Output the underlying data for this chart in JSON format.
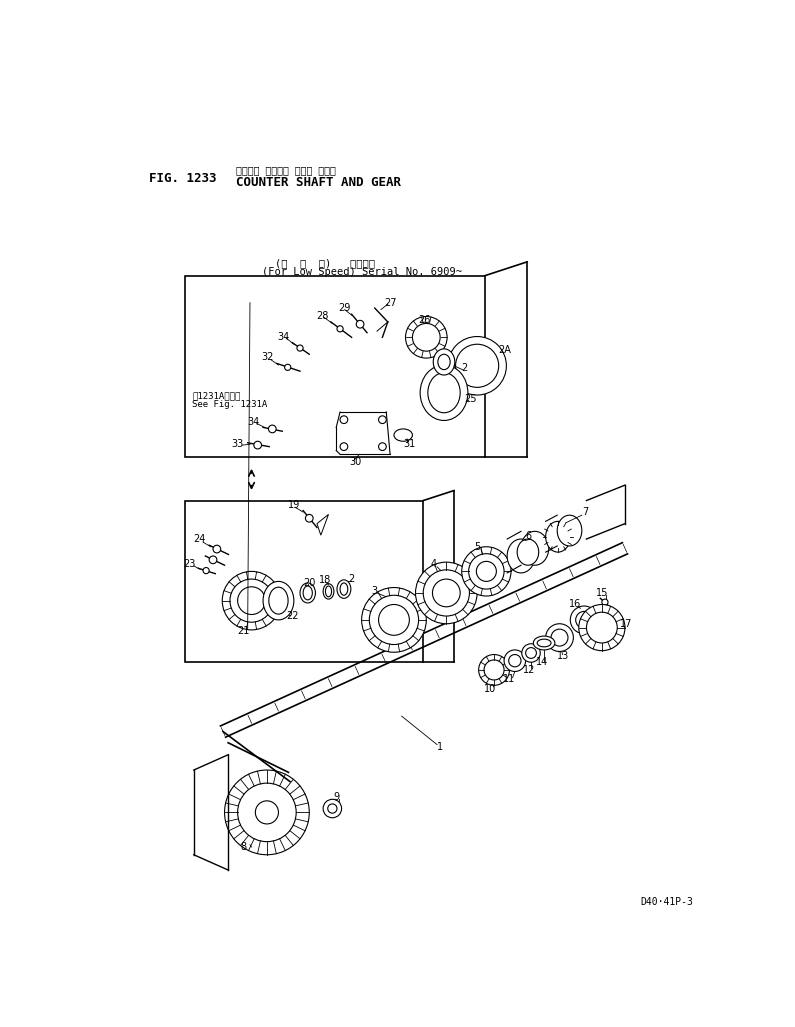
{
  "title_japanese": "カウンタ シャフト および ギヤー",
  "title_english": "COUNTER SHAFT AND GEAR",
  "fig_number": "FIG. 1233",
  "subtitle_japanese": "(低  速  用)   適用号機",
  "subtitle_english": "(For Low Speed) Serial No. 6909~",
  "see_fig_japanese": "第1231A図参照",
  "see_fig_english": "See Fig. 1231A",
  "doc_number": "D40·41P-3",
  "bg_color": "#ffffff",
  "line_color": "#000000"
}
